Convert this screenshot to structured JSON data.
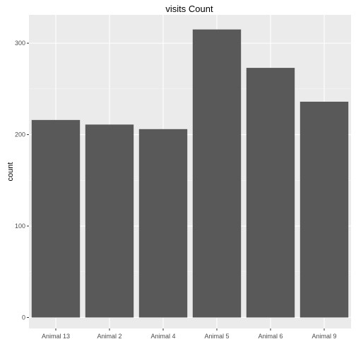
{
  "chart_data": {
    "type": "bar",
    "title": "visits Count",
    "xlabel": "",
    "ylabel": "count",
    "categories": [
      "Animal 13",
      "Animal 2",
      "Animal 4",
      "Animal 5",
      "Animal 6",
      "Animal 9"
    ],
    "values": [
      216,
      211,
      206,
      315,
      273,
      236
    ],
    "ylim": [
      -12,
      331
    ],
    "yticks": [
      0,
      100,
      200,
      300
    ],
    "grid": true,
    "legend": "none",
    "colors": {
      "bar": "#595959",
      "panel": "#ebebeb",
      "grid_major": "#ffffff",
      "grid_minor": "#f5f5f5",
      "tick": "#333333"
    }
  }
}
